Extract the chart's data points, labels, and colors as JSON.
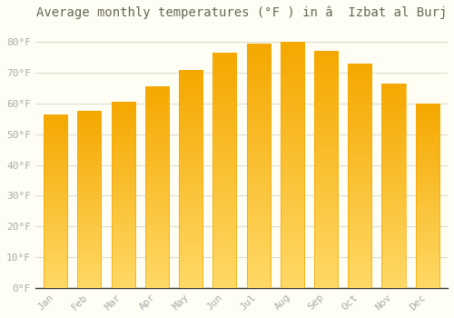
{
  "title": "Average monthly temperatures (°F ) in â  Izbat al Burj",
  "months": [
    "Jan",
    "Feb",
    "Mar",
    "Apr",
    "May",
    "Jun",
    "Jul",
    "Aug",
    "Sep",
    "Oct",
    "Nov",
    "Dec"
  ],
  "values": [
    56.5,
    57.5,
    60.5,
    65.5,
    71.0,
    76.5,
    79.5,
    80.0,
    77.0,
    73.0,
    66.5,
    60.0
  ],
  "bar_color_top": "#F5A800",
  "bar_color_bottom": "#FFD966",
  "background_color": "#FFFEF5",
  "grid_color": "#DDDDCC",
  "text_color": "#AAAAAA",
  "title_color": "#666655",
  "ytick_labels": [
    "0°F",
    "10°F",
    "20°F",
    "30°F",
    "40°F",
    "50°F",
    "60°F",
    "70°F",
    "80°F"
  ],
  "ytick_values": [
    0,
    10,
    20,
    30,
    40,
    50,
    60,
    70,
    80
  ],
  "ylim": [
    0,
    85
  ],
  "title_fontsize": 10,
  "tick_fontsize": 8,
  "font_family": "monospace"
}
